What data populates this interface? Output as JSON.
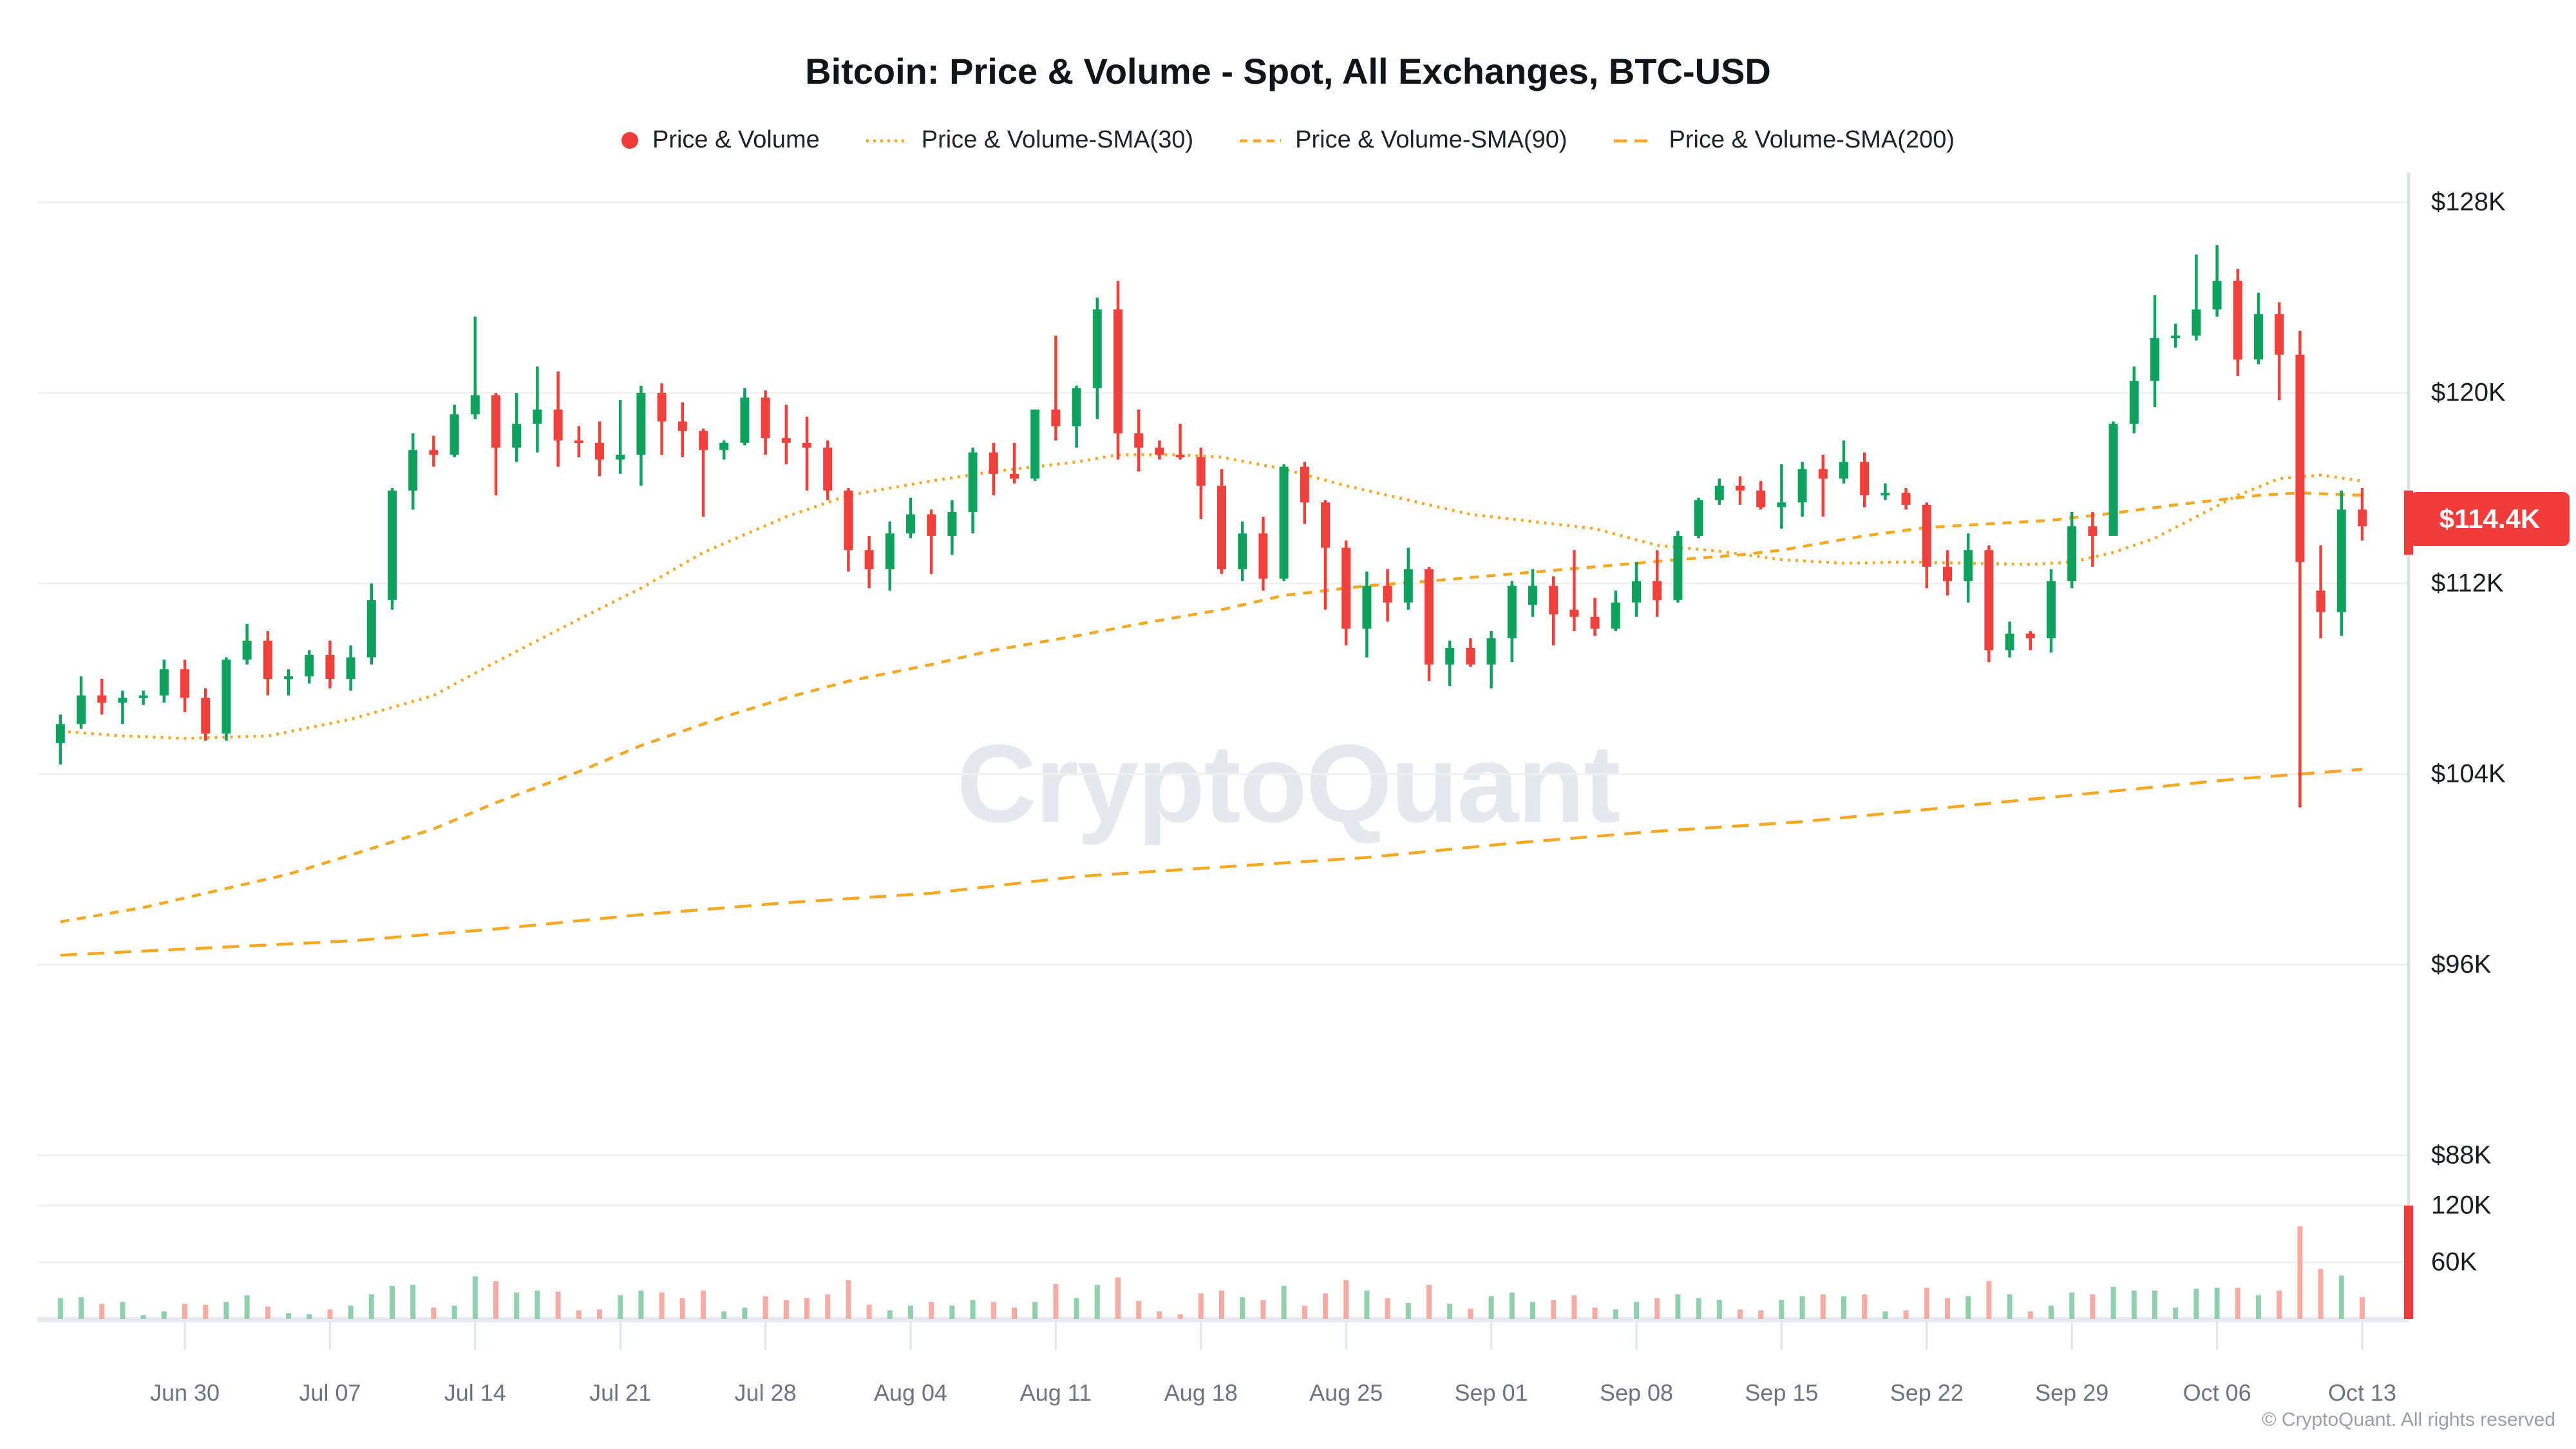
{
  "title": "Bitcoin: Price & Volume - Spot, All Exchanges, BTC-USD",
  "watermark": "CryptoQuant",
  "footer": "© CryptoQuant. All rights reserved",
  "legend": [
    {
      "label": "Price & Volume",
      "marker": "dot",
      "color": "#f23c3c"
    },
    {
      "label": "Price & Volume-SMA(30)",
      "marker": "dash-fine",
      "color": "#f7a823"
    },
    {
      "label": "Price & Volume-SMA(90)",
      "marker": "dash-med",
      "color": "#f7a823"
    },
    {
      "label": "Price & Volume-SMA(200)",
      "marker": "dash-long",
      "color": "#f7a823"
    }
  ],
  "price_axis": {
    "labels": [
      {
        "text": "$128K",
        "price": 128
      },
      {
        "text": "$120K",
        "price": 120
      },
      {
        "text": "$112K",
        "price": 112
      },
      {
        "text": "$104K",
        "price": 104
      },
      {
        "text": "$96K",
        "price": 96
      },
      {
        "text": "$88K",
        "price": 88
      }
    ],
    "current": {
      "text": "$114.4K",
      "price": 114.4
    }
  },
  "volume_axis": [
    {
      "text": "120K",
      "value": 120
    },
    {
      "text": "60K",
      "value": 60
    }
  ],
  "x_axis": [
    {
      "label": "Jun 30",
      "day": 6
    },
    {
      "label": "Jul 07",
      "day": 13
    },
    {
      "label": "Jul 14",
      "day": 20
    },
    {
      "label": "Jul 21",
      "day": 27
    },
    {
      "label": "Jul 28",
      "day": 34
    },
    {
      "label": "Aug 04",
      "day": 41
    },
    {
      "label": "Aug 11",
      "day": 48
    },
    {
      "label": "Aug 18",
      "day": 55
    },
    {
      "label": "Aug 25",
      "day": 62
    },
    {
      "label": "Sep 01",
      "day": 69
    },
    {
      "label": "Sep 08",
      "day": 76
    },
    {
      "label": "Sep 15",
      "day": 83
    },
    {
      "label": "Sep 22",
      "day": 90
    },
    {
      "label": "Sep 29",
      "day": 97
    },
    {
      "label": "Oct 06",
      "day": 104
    },
    {
      "label": "Oct 13",
      "day": 111
    }
  ],
  "chart_data": {
    "type": "candlestick+volume",
    "title": "Bitcoin: Price & Volume - Spot, All Exchanges, BTC-USD",
    "price_unit": "USD thousands",
    "volume_unit": "K BTC",
    "ylim_price": [
      88,
      128
    ],
    "ylim_volume": [
      0,
      150
    ],
    "grid": true,
    "legend_position": "top",
    "current_price": 114.4,
    "dates": [
      "Jun 24",
      "Jun 25",
      "Jun 26",
      "Jun 27",
      "Jun 28",
      "Jun 29",
      "Jun 30",
      "Jul 01",
      "Jul 02",
      "Jul 03",
      "Jul 04",
      "Jul 05",
      "Jul 06",
      "Jul 07",
      "Jul 08",
      "Jul 09",
      "Jul 10",
      "Jul 11",
      "Jul 12",
      "Jul 13",
      "Jul 14",
      "Jul 15",
      "Jul 16",
      "Jul 17",
      "Jul 18",
      "Jul 19",
      "Jul 20",
      "Jul 21",
      "Jul 22",
      "Jul 23",
      "Jul 24",
      "Jul 25",
      "Jul 26",
      "Jul 27",
      "Jul 28",
      "Jul 29",
      "Jul 30",
      "Jul 31",
      "Aug 01",
      "Aug 02",
      "Aug 03",
      "Aug 04",
      "Aug 05",
      "Aug 06",
      "Aug 07",
      "Aug 08",
      "Aug 09",
      "Aug 10",
      "Aug 11",
      "Aug 12",
      "Aug 13",
      "Aug 14",
      "Aug 15",
      "Aug 16",
      "Aug 17",
      "Aug 18",
      "Aug 19",
      "Aug 20",
      "Aug 21",
      "Aug 22",
      "Aug 23",
      "Aug 24",
      "Aug 25",
      "Aug 26",
      "Aug 27",
      "Aug 28",
      "Aug 29",
      "Aug 30",
      "Aug 31",
      "Sep 01",
      "Sep 02",
      "Sep 03",
      "Sep 04",
      "Sep 05",
      "Sep 06",
      "Sep 07",
      "Sep 08",
      "Sep 09",
      "Sep 10",
      "Sep 11",
      "Sep 12",
      "Sep 13",
      "Sep 14",
      "Sep 15",
      "Sep 16",
      "Sep 17",
      "Sep 18",
      "Sep 19",
      "Sep 20",
      "Sep 21",
      "Sep 22",
      "Sep 23",
      "Sep 24",
      "Sep 25",
      "Sep 26",
      "Sep 27",
      "Sep 28",
      "Sep 29",
      "Sep 30",
      "Oct 01",
      "Oct 02",
      "Oct 03",
      "Oct 04",
      "Oct 05",
      "Oct 06",
      "Oct 07",
      "Oct 08",
      "Oct 09",
      "Oct 10",
      "Oct 11",
      "Oct 12",
      "Oct 13"
    ],
    "candles_ohlc": [
      [
        105.3,
        106.5,
        104.4,
        106.1
      ],
      [
        106.1,
        108.1,
        105.9,
        107.3
      ],
      [
        107.3,
        108.0,
        106.5,
        107.0
      ],
      [
        107.0,
        107.5,
        106.1,
        107.2
      ],
      [
        107.2,
        107.5,
        106.9,
        107.3
      ],
      [
        107.3,
        108.8,
        107.0,
        108.4
      ],
      [
        108.4,
        108.8,
        106.6,
        107.2
      ],
      [
        107.2,
        107.6,
        105.4,
        105.7
      ],
      [
        105.7,
        108.9,
        105.4,
        108.8
      ],
      [
        108.8,
        110.3,
        108.6,
        109.6
      ],
      [
        109.6,
        110.0,
        107.3,
        108.0
      ],
      [
        108.0,
        108.4,
        107.3,
        108.1
      ],
      [
        108.1,
        109.2,
        107.8,
        109.0
      ],
      [
        109.0,
        109.6,
        107.6,
        108.0
      ],
      [
        108.0,
        109.4,
        107.5,
        108.9
      ],
      [
        108.9,
        112.0,
        108.6,
        111.3
      ],
      [
        111.3,
        116.0,
        110.9,
        115.9
      ],
      [
        115.9,
        118.3,
        115.1,
        117.6
      ],
      [
        117.6,
        118.2,
        116.9,
        117.4
      ],
      [
        117.4,
        119.5,
        117.3,
        119.1
      ],
      [
        119.1,
        123.2,
        118.9,
        119.9
      ],
      [
        119.9,
        120.0,
        115.7,
        117.7
      ],
      [
        117.7,
        120.0,
        117.1,
        118.7
      ],
      [
        118.7,
        121.1,
        117.5,
        119.3
      ],
      [
        119.3,
        120.9,
        116.9,
        118.0
      ],
      [
        118.0,
        118.6,
        117.3,
        117.9
      ],
      [
        117.9,
        118.8,
        116.5,
        117.2
      ],
      [
        117.2,
        119.7,
        116.6,
        117.4
      ],
      [
        117.4,
        120.3,
        116.1,
        120.0
      ],
      [
        120.0,
        120.4,
        117.4,
        118.8
      ],
      [
        118.8,
        119.6,
        117.3,
        118.4
      ],
      [
        118.4,
        118.5,
        114.8,
        117.6
      ],
      [
        117.6,
        118.0,
        117.2,
        117.9
      ],
      [
        117.9,
        120.2,
        117.8,
        119.8
      ],
      [
        119.8,
        120.1,
        117.4,
        118.1
      ],
      [
        118.1,
        119.5,
        117.0,
        117.9
      ],
      [
        117.9,
        119.0,
        115.9,
        117.7
      ],
      [
        117.7,
        118.0,
        115.5,
        115.9
      ],
      [
        115.9,
        116.0,
        112.5,
        113.4
      ],
      [
        113.4,
        114.0,
        111.8,
        112.6
      ],
      [
        112.6,
        114.6,
        111.7,
        114.1
      ],
      [
        114.1,
        115.6,
        113.9,
        114.9
      ],
      [
        114.9,
        115.1,
        112.4,
        114.0
      ],
      [
        114.0,
        115.5,
        113.2,
        115.0
      ],
      [
        115.0,
        117.7,
        114.1,
        117.5
      ],
      [
        117.5,
        117.9,
        115.7,
        116.6
      ],
      [
        116.6,
        117.9,
        116.2,
        116.4
      ],
      [
        116.4,
        119.3,
        116.3,
        119.3
      ],
      [
        119.3,
        122.4,
        118.0,
        118.6
      ],
      [
        118.6,
        120.3,
        117.7,
        120.2
      ],
      [
        120.2,
        124.0,
        118.9,
        123.5
      ],
      [
        123.5,
        124.7,
        117.2,
        118.3
      ],
      [
        118.3,
        119.3,
        116.7,
        117.7
      ],
      [
        117.7,
        118.0,
        117.2,
        117.4
      ],
      [
        117.4,
        118.7,
        117.2,
        117.3
      ],
      [
        117.3,
        117.7,
        114.7,
        116.1
      ],
      [
        116.1,
        116.8,
        112.4,
        112.6
      ],
      [
        112.6,
        114.6,
        112.1,
        114.1
      ],
      [
        114.1,
        114.8,
        111.7,
        112.2
      ],
      [
        112.2,
        117.0,
        112.1,
        116.9
      ],
      [
        116.9,
        117.1,
        114.5,
        115.4
      ],
      [
        115.4,
        115.5,
        110.9,
        113.5
      ],
      [
        113.5,
        113.8,
        109.4,
        110.1
      ],
      [
        110.1,
        112.5,
        108.9,
        111.9
      ],
      [
        111.9,
        112.6,
        110.4,
        111.2
      ],
      [
        111.2,
        113.5,
        110.9,
        112.6
      ],
      [
        112.6,
        112.7,
        107.9,
        108.6
      ],
      [
        108.6,
        109.6,
        107.7,
        109.3
      ],
      [
        109.3,
        109.7,
        108.5,
        108.6
      ],
      [
        108.6,
        110.0,
        107.6,
        109.7
      ],
      [
        109.7,
        112.1,
        108.7,
        111.9
      ],
      [
        111.1,
        112.6,
        110.6,
        111.9
      ],
      [
        111.9,
        112.3,
        109.4,
        110.7
      ],
      [
        110.9,
        113.4,
        110.0,
        110.6
      ],
      [
        110.6,
        111.4,
        109.8,
        110.1
      ],
      [
        110.1,
        111.7,
        110.0,
        111.2
      ],
      [
        111.2,
        112.9,
        110.6,
        112.1
      ],
      [
        112.1,
        113.4,
        110.6,
        111.3
      ],
      [
        111.3,
        114.2,
        111.2,
        114.0
      ],
      [
        114.0,
        115.6,
        113.9,
        115.5
      ],
      [
        115.5,
        116.4,
        115.3,
        116.1
      ],
      [
        116.1,
        116.5,
        115.3,
        115.9
      ],
      [
        115.9,
        116.3,
        115.1,
        115.2
      ],
      [
        115.2,
        117.0,
        114.3,
        115.4
      ],
      [
        115.4,
        117.1,
        114.8,
        116.8
      ],
      [
        116.8,
        117.4,
        114.8,
        116.4
      ],
      [
        116.4,
        118.0,
        116.2,
        117.1
      ],
      [
        117.1,
        117.5,
        115.2,
        115.7
      ],
      [
        115.7,
        116.2,
        115.5,
        115.8
      ],
      [
        115.8,
        116.0,
        115.1,
        115.3
      ],
      [
        115.3,
        115.4,
        111.8,
        112.7
      ],
      [
        112.7,
        113.4,
        111.5,
        112.1
      ],
      [
        112.1,
        114.1,
        111.2,
        113.4
      ],
      [
        113.4,
        113.6,
        108.7,
        109.2
      ],
      [
        109.2,
        110.4,
        108.9,
        109.9
      ],
      [
        109.9,
        110.0,
        109.2,
        109.7
      ],
      [
        109.7,
        112.6,
        109.1,
        112.1
      ],
      [
        112.1,
        115.0,
        111.8,
        114.4
      ],
      [
        114.4,
        115.0,
        112.7,
        114.0
      ],
      [
        114.0,
        118.8,
        114.0,
        118.7
      ],
      [
        118.7,
        121.1,
        118.3,
        120.5
      ],
      [
        120.5,
        124.1,
        119.4,
        122.3
      ],
      [
        122.3,
        122.9,
        121.9,
        122.4
      ],
      [
        122.4,
        125.8,
        122.2,
        123.5
      ],
      [
        123.5,
        126.2,
        123.2,
        124.7
      ],
      [
        124.7,
        125.2,
        120.7,
        121.4
      ],
      [
        121.4,
        124.2,
        121.2,
        123.3
      ],
      [
        123.3,
        123.8,
        119.7,
        121.6
      ],
      [
        121.6,
        122.6,
        102.6,
        112.9
      ],
      [
        111.7,
        113.6,
        109.7,
        110.8
      ],
      [
        110.8,
        115.9,
        109.8,
        115.1
      ],
      [
        115.1,
        116.0,
        113.8,
        114.4
      ]
    ],
    "volumes": [
      22,
      23,
      16,
      18,
      4,
      8,
      16,
      15,
      18,
      25,
      13,
      6,
      5,
      10,
      14,
      26,
      35,
      36,
      12,
      14,
      45,
      40,
      28,
      30,
      29,
      9,
      10,
      25,
      30,
      28,
      22,
      30,
      8,
      12,
      24,
      20,
      22,
      26,
      41,
      15,
      9,
      14,
      18,
      14,
      20,
      18,
      12,
      18,
      37,
      22,
      36,
      44,
      19,
      8,
      5,
      27,
      30,
      23,
      20,
      35,
      14,
      27,
      41,
      30,
      22,
      17,
      36,
      16,
      11,
      24,
      28,
      18,
      20,
      25,
      12,
      10,
      18,
      22,
      26,
      22,
      20,
      10,
      9,
      20,
      24,
      26,
      24,
      26,
      8,
      9,
      33,
      22,
      24,
      40,
      26,
      8,
      14,
      28,
      26,
      34,
      30,
      30,
      12,
      32,
      33,
      33,
      25,
      30,
      98,
      53,
      46,
      23
    ],
    "sma30": [
      [
        0,
        105.8
      ],
      [
        3,
        105.6
      ],
      [
        6,
        105.5
      ],
      [
        10,
        105.6
      ],
      [
        14,
        106.3
      ],
      [
        18,
        107.3
      ],
      [
        21,
        108.7
      ],
      [
        25,
        110.5
      ],
      [
        28,
        111.8
      ],
      [
        31,
        113.3
      ],
      [
        35,
        114.8
      ],
      [
        38,
        115.7
      ],
      [
        42,
        116.3
      ],
      [
        45,
        116.7
      ],
      [
        49,
        117.1
      ],
      [
        51,
        117.4
      ],
      [
        54,
        117.4
      ],
      [
        56,
        117.3
      ],
      [
        59,
        116.8
      ],
      [
        62,
        116.1
      ],
      [
        65,
        115.5
      ],
      [
        68,
        114.9
      ],
      [
        71,
        114.6
      ],
      [
        74,
        114.3
      ],
      [
        77,
        113.6
      ],
      [
        80,
        113.35
      ],
      [
        83,
        113.0
      ],
      [
        86,
        112.85
      ],
      [
        89,
        112.9
      ],
      [
        92,
        112.85
      ],
      [
        95,
        112.8
      ],
      [
        97,
        112.9
      ],
      [
        99,
        113.3
      ],
      [
        101,
        113.9
      ],
      [
        103,
        114.8
      ],
      [
        105,
        115.7
      ],
      [
        107,
        116.4
      ],
      [
        109,
        116.55
      ],
      [
        111,
        116.3
      ]
    ],
    "sma90": [
      [
        0,
        97.8
      ],
      [
        4,
        98.4
      ],
      [
        7,
        99.0
      ],
      [
        11,
        99.8
      ],
      [
        14,
        100.6
      ],
      [
        18,
        101.7
      ],
      [
        21,
        102.8
      ],
      [
        25,
        104.1
      ],
      [
        28,
        105.2
      ],
      [
        32,
        106.4
      ],
      [
        35,
        107.2
      ],
      [
        38,
        107.9
      ],
      [
        42,
        108.6
      ],
      [
        45,
        109.2
      ],
      [
        49,
        109.8
      ],
      [
        52,
        110.3
      ],
      [
        56,
        110.9
      ],
      [
        59,
        111.5
      ],
      [
        63,
        111.9
      ],
      [
        66,
        112.1
      ],
      [
        70,
        112.4
      ],
      [
        74,
        112.7
      ],
      [
        78,
        113.0
      ],
      [
        81,
        113.2
      ],
      [
        83,
        113.4
      ],
      [
        85,
        113.7
      ],
      [
        87,
        114.0
      ],
      [
        90,
        114.35
      ],
      [
        93,
        114.5
      ],
      [
        96,
        114.65
      ],
      [
        99,
        114.95
      ],
      [
        102,
        115.3
      ],
      [
        104,
        115.5
      ],
      [
        106,
        115.7
      ],
      [
        108,
        115.8
      ],
      [
        111,
        115.7
      ]
    ],
    "sma200": [
      [
        0,
        96.4
      ],
      [
        7,
        96.7
      ],
      [
        14,
        97.0
      ],
      [
        21,
        97.5
      ],
      [
        28,
        98.1
      ],
      [
        35,
        98.6
      ],
      [
        42,
        99.0
      ],
      [
        49,
        99.7
      ],
      [
        56,
        100.1
      ],
      [
        63,
        100.5
      ],
      [
        70,
        101.1
      ],
      [
        77,
        101.6
      ],
      [
        84,
        102.0
      ],
      [
        91,
        102.6
      ],
      [
        98,
        103.2
      ],
      [
        105,
        103.8
      ],
      [
        111,
        104.2
      ]
    ],
    "current_bar": {
      "price_top": 115.9,
      "price_bottom": 113.2,
      "volume": 120,
      "color": "#f23c3c"
    },
    "colors": {
      "up": "#0ea25e",
      "down": "#f0403c",
      "volume_up": "#90d0ad",
      "volume_down": "#f6aba5",
      "sma": "#f7a823",
      "grid": "#f0f1f3",
      "axis": "#dfe0e6",
      "baseline": "#e9e9f0",
      "tick": "#e3e4ea",
      "badge": "#f23c3c"
    }
  }
}
